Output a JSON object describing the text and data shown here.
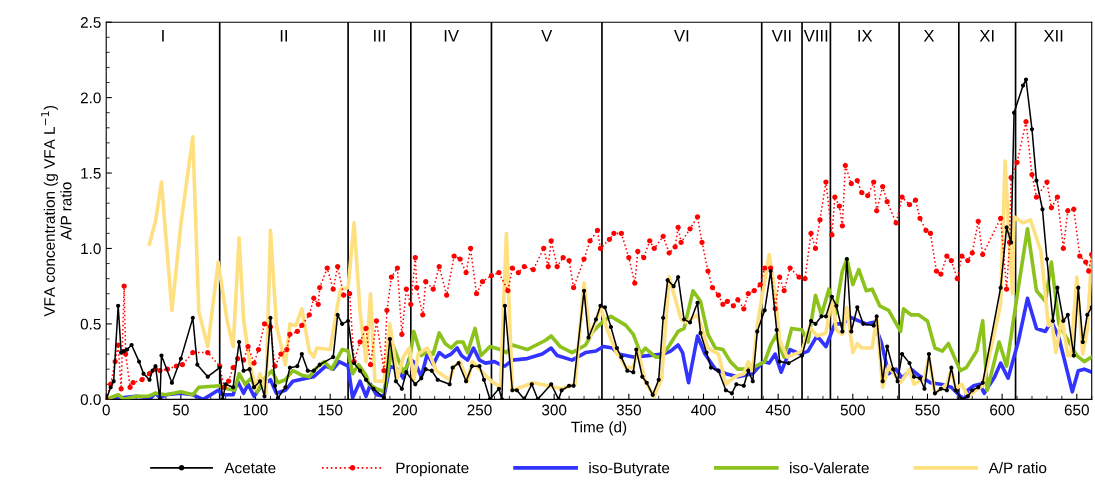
{
  "chart_data": {
    "type": "line",
    "xlabel": "Time (d)",
    "ylabel": "VFA concentration (g VFA L$^{−1}$)\nA/P ratio",
    "xlim": [
      0,
      660
    ],
    "xticks": [
      0,
      50,
      100,
      150,
      200,
      250,
      300,
      350,
      400,
      450,
      500,
      550,
      600,
      650
    ],
    "ylim": [
      0,
      2.5
    ],
    "yticks": [
      {
        "value": 0,
        "label": "0.0"
      },
      {
        "value": 0.5,
        "label": "0.5"
      },
      {
        "value": 1,
        "label": "1.0"
      },
      {
        "value": 1.5,
        "label": "1.5"
      },
      {
        "value": 2,
        "label": "2.0"
      },
      {
        "value": 2.5,
        "label": "2.5"
      }
    ],
    "grid": false,
    "legend": "bottom",
    "ref_lines": [
      {
        "axis": "x",
        "value": 76,
        "color": "#000000"
      },
      {
        "axis": "x",
        "value": 162,
        "color": "#000000"
      },
      {
        "axis": "x",
        "value": 204,
        "color": "#000000"
      },
      {
        "axis": "x",
        "value": 258,
        "color": "#000000"
      },
      {
        "axis": "x",
        "value": 332,
        "color": "#000000"
      },
      {
        "axis": "x",
        "value": 439,
        "color": "#000000"
      },
      {
        "axis": "x",
        "value": 466,
        "color": "#000000"
      },
      {
        "axis": "x",
        "value": 485,
        "color": "#000000"
      },
      {
        "axis": "x",
        "value": 531,
        "color": "#000000"
      },
      {
        "axis": "x",
        "value": 571,
        "color": "#000000"
      },
      {
        "axis": "x",
        "value": 609,
        "color": "#000000"
      }
    ],
    "annotations": [
      "I",
      "II",
      "III",
      "IV",
      "V",
      "VI",
      "VII",
      "VIII",
      "IX",
      "X",
      "XI",
      "XII"
    ],
    "series": [
      {
        "name": "Acetate",
        "color": "#000000",
        "marker": "circle",
        "line_style": "solid",
        "x": [
          0,
          3,
          5,
          8,
          10,
          12,
          14,
          17,
          22,
          25,
          29,
          31,
          33,
          36,
          37,
          44,
          50,
          58,
          61,
          68,
          76,
          78,
          80,
          85,
          89,
          92,
          96,
          99,
          103,
          106,
          110,
          113,
          115,
          120,
          123,
          128,
          131,
          135,
          139,
          143,
          152,
          155,
          158,
          162,
          166,
          170,
          174,
          179,
          186,
          190,
          194,
          198,
          201,
          207,
          211,
          214,
          218,
          222,
          230,
          232,
          236,
          241,
          245,
          250,
          253,
          257,
          263,
          265,
          267,
          272,
          275,
          280,
          285,
          289,
          298,
          303,
          305,
          310,
          313,
          320,
          323,
          328,
          331,
          334,
          338,
          342,
          345,
          349,
          353,
          355,
          359,
          362,
          366,
          370,
          373,
          376,
          380,
          383,
          387,
          391,
          396,
          398,
          402,
          405,
          410,
          415,
          419,
          422,
          427,
          430,
          433,
          436,
          441,
          445,
          449,
          451,
          457,
          466,
          472,
          475,
          479,
          482,
          486,
          489,
          493,
          496,
          499,
          503,
          507,
          514,
          516,
          520,
          523,
          527,
          530,
          533,
          538,
          541,
          545,
          548,
          551,
          555,
          559,
          563,
          566,
          569,
          573,
          577,
          580,
          584,
          587,
          599,
          603,
          606,
          608,
          614,
          616,
          620,
          623,
          627,
          630,
          634,
          637,
          641,
          644,
          648,
          651,
          654,
          657,
          660
        ],
        "values": [
          0,
          0.08,
          0.12,
          0.62,
          0.31,
          0.32,
          0.33,
          0.36,
          0.25,
          0.17,
          0.13,
          0.19,
          0.22,
          0,
          0.29,
          0.11,
          0.27,
          0.54,
          0.23,
          0.15,
          0.21,
          0,
          0.1,
          0.08,
          0.38,
          0.19,
          0.2,
          0.08,
          0.12,
          0.02,
          0.54,
          0.09,
          0.01,
          0.08,
          0.21,
          0.22,
          0.3,
          0.19,
          0.19,
          0.23,
          0.28,
          0.56,
          0.5,
          0.52,
          0.24,
          0.19,
          0.13,
          0.07,
          0.01,
          0.4,
          0.12,
          0.07,
          0.18,
          0.1,
          0.14,
          0.2,
          0.19,
          0.13,
          0.1,
          0.21,
          0.24,
          0.12,
          0.22,
          0.22,
          0.13,
          0,
          0.07,
          0,
          0.62,
          0.06,
          0.06,
          0,
          0.1,
          0,
          0.1,
          0,
          0.06,
          0.09,
          0.09,
          0.72,
          0.41,
          0.53,
          0.62,
          0.61,
          0.48,
          0.34,
          0.28,
          0.19,
          0.18,
          0.33,
          0.15,
          0.11,
          0.03,
          0.13,
          0.54,
          0.79,
          0.75,
          0.81,
          0.53,
          0.51,
          0.64,
          0.44,
          0.31,
          0.21,
          0.19,
          0.06,
          0.04,
          0.1,
          0.09,
          0.19,
          0.12,
          0.45,
          0.59,
          0.85,
          0.46,
          0.25,
          0.24,
          0.29,
          0.52,
          0.5,
          0.55,
          0.55,
          0.68,
          0.62,
          0.45,
          0.93,
          0.45,
          0.61,
          0.5,
          0.49,
          0.55,
          0.12,
          0.35,
          0.2,
          0.12,
          0.3,
          0.24,
          0.15,
          0.14,
          0.07,
          0.3,
          0.04,
          0.07,
          0.06,
          0.21,
          0.06,
          0,
          0.02,
          0.06,
          0.08,
          0.11,
          0.74,
          1.14,
          1.04,
          1.9,
          2.08,
          2.12,
          1.79,
          1.45,
          1.26,
          0.93,
          0.52,
          0.74,
          0.52,
          0.56,
          0.29,
          0.74,
          0.38,
          0.56,
          0.61
        ]
      },
      {
        "name": "Propionate",
        "color": "#ff0000",
        "marker": "circle",
        "line_style": "dotted",
        "x": [
          0,
          3,
          6,
          8,
          10,
          12,
          13,
          16,
          18,
          24,
          29,
          33,
          36,
          41,
          47,
          51,
          58,
          68,
          76,
          79,
          82,
          85,
          88,
          92,
          95,
          99,
          102,
          106,
          110,
          113,
          117,
          121,
          123,
          128,
          131,
          136,
          139,
          142,
          143,
          148,
          152,
          155,
          159,
          163,
          166,
          170,
          174,
          177,
          181,
          186,
          188,
          191,
          195,
          198,
          201,
          204,
          207,
          208,
          212,
          214,
          219,
          223,
          228,
          233,
          237,
          241,
          244,
          248,
          252,
          258,
          263,
          269,
          272,
          276,
          280,
          286,
          293,
          296,
          298,
          302,
          306,
          310,
          313,
          320,
          324,
          329,
          331,
          337,
          340,
          345,
          350,
          354,
          356,
          360,
          364,
          367,
          373,
          377,
          381,
          383,
          385,
          391,
          396,
          399,
          403,
          406,
          410,
          413,
          416,
          420,
          423,
          427,
          430,
          434,
          438,
          441,
          445,
          448,
          451,
          454,
          458,
          464,
          468,
          472,
          475,
          478,
          482,
          486,
          488,
          491,
          493,
          495,
          499,
          503,
          506,
          510,
          514,
          516,
          520,
          523,
          529,
          533,
          538,
          542,
          545,
          549,
          552,
          556,
          559,
          563,
          566,
          570,
          573,
          577,
          580,
          584,
          587,
          599,
          603,
          605,
          606,
          610,
          616,
          620,
          623,
          630,
          633,
          637,
          641,
          644,
          648,
          652,
          656,
          658,
          660
        ],
        "values": [
          0,
          0.1,
          0.25,
          0.36,
          0.07,
          0.75,
          0.3,
          0.08,
          0.11,
          0.13,
          0.17,
          0.2,
          0.19,
          0.2,
          0.22,
          0.23,
          0.31,
          0.31,
          0.22,
          0.08,
          0.12,
          0.21,
          0.27,
          0.26,
          0.35,
          0.24,
          0.33,
          0.5,
          0.48,
          0.22,
          0.3,
          0.33,
          0.43,
          0.45,
          0.49,
          0.56,
          0.67,
          0.63,
          0.74,
          0.87,
          0.73,
          0.88,
          0.69,
          0.7,
          0.25,
          0.38,
          0.47,
          0.23,
          0.52,
          0.19,
          0.59,
          0.81,
          0.87,
          0.43,
          0.73,
          0.63,
          0.94,
          0.74,
          0.56,
          0.78,
          0.73,
          0.88,
          0.69,
          0.95,
          0.93,
          0.84,
          1.0,
          0.7,
          0.78,
          0.82,
          0.84,
          0.72,
          0.87,
          0.84,
          0.88,
          0.86,
          1.0,
          0.88,
          1.05,
          0.88,
          0.94,
          0.92,
          0.74,
          0.93,
          1.05,
          1.12,
          1.0,
          1.06,
          1.1,
          1.1,
          0.94,
          0.77,
          0.98,
          0.94,
          1.05,
          1.0,
          1.08,
          0.97,
          1.01,
          1.14,
          1.04,
          1.13,
          1.21,
          1.04,
          0.85,
          0.74,
          0.69,
          0.63,
          0.65,
          0.62,
          0.66,
          0.6,
          0.7,
          0.72,
          0.76,
          0.87,
          0.87,
          0.6,
          0.81,
          0.72,
          0.87,
          0.81,
          0.8,
          1.1,
          1.0,
          1.19,
          1.44,
          1.09,
          1.34,
          1.28,
          1.15,
          1.55,
          1.43,
          1.45,
          1.37,
          1.35,
          1.44,
          1.25,
          1.41,
          1.31,
          1.17,
          1.34,
          1.29,
          1.32,
          1.2,
          1.12,
          1.1,
          0.85,
          0.83,
          0.95,
          0.92,
          0.8,
          0.95,
          0.92,
          0.97,
          1.18,
          0.96,
          1.2,
          0.73,
          1.04,
          1.47,
          1.57,
          1.84,
          1.49,
          1.34,
          1.44,
          1.27,
          1.34,
          1.0,
          1.25,
          1.26,
          0.95,
          0.91,
          0.85,
          0.96
        ]
      },
      {
        "name": "iso-Butyrate",
        "color": "#3333ff",
        "marker": "none",
        "line_style": "solid",
        "x": [
          0,
          20,
          30,
          33,
          36,
          40,
          50,
          58,
          65,
          75,
          78,
          85,
          88,
          92,
          95,
          99,
          104,
          110,
          114,
          120,
          125,
          134,
          139,
          147,
          152,
          156,
          162,
          165,
          170,
          174,
          177,
          181,
          186,
          190,
          195,
          199,
          203,
          207,
          211,
          215,
          219,
          223,
          227,
          231,
          235,
          238,
          242,
          246,
          250,
          254,
          260,
          264,
          267,
          272,
          282,
          292,
          298,
          302,
          312,
          321,
          328,
          333,
          339,
          343,
          353,
          363,
          373,
          378,
          383,
          386,
          390,
          396,
          401,
          408,
          415,
          423,
          433,
          440,
          444,
          448,
          452,
          458,
          465,
          470,
          476,
          482,
          488,
          494,
          497,
          504,
          509,
          514,
          519,
          524,
          529,
          533,
          539,
          544,
          552,
          559,
          566,
          572,
          575,
          577,
          581,
          585,
          588,
          595,
          599,
          604,
          611,
          617,
          623,
          629,
          633,
          638,
          644,
          647,
          651,
          655,
          660
        ],
        "values": [
          0,
          0.02,
          0.01,
          0.04,
          0.01,
          0.03,
          0.04,
          0.03,
          0,
          0.06,
          0.03,
          0.03,
          0.12,
          0.04,
          0.1,
          0.02,
          0.09,
          0.13,
          0.04,
          0.06,
          0.12,
          0.14,
          0.15,
          0.22,
          0.2,
          0.25,
          0.22,
          0.01,
          0.12,
          0.02,
          0.1,
          0.03,
          0.02,
          0.22,
          0.2,
          0.14,
          0.27,
          0.24,
          0.15,
          0.3,
          0.23,
          0.31,
          0.28,
          0.3,
          0.34,
          0.29,
          0.26,
          0.34,
          0.26,
          0.24,
          0.25,
          0.23,
          0.22,
          0.26,
          0.27,
          0.3,
          0.34,
          0.29,
          0.26,
          0.31,
          0.32,
          0.35,
          0.34,
          0.3,
          0.28,
          0.29,
          0.3,
          0.32,
          0.36,
          0.31,
          0.11,
          0.42,
          0.3,
          0.2,
          0.17,
          0.15,
          0.17,
          0.25,
          0.24,
          0.3,
          0.18,
          0.33,
          0.3,
          0.32,
          0.42,
          0.35,
          0.5,
          0.5,
          0.55,
          0.52,
          0.5,
          0.51,
          0.38,
          0.17,
          0.2,
          0.14,
          0.2,
          0.16,
          0.11,
          0.1,
          0.08,
          0.02,
          0,
          0.06,
          0.09,
          0.1,
          0.04,
          0.15,
          0.24,
          0.14,
          0.39,
          0.67,
          0.47,
          0.45,
          0.52,
          0.41,
          0.17,
          0.05,
          0.19,
          0.2,
          0.18
        ]
      },
      {
        "name": "iso-Valerate",
        "color": "#8cc21c",
        "marker": "none",
        "line_style": "solid",
        "x": [
          0,
          8,
          12,
          20,
          28,
          33,
          40,
          50,
          58,
          62,
          76,
          81,
          86,
          89,
          93,
          97,
          101,
          107,
          111,
          115,
          120,
          125,
          131,
          136,
          141,
          146,
          151,
          158,
          162,
          165,
          169,
          174,
          176,
          181,
          186,
          192,
          195,
          199,
          203,
          206,
          211,
          215,
          219,
          223,
          227,
          231,
          235,
          239,
          242,
          247,
          251,
          257,
          264,
          268,
          272,
          282,
          294,
          298,
          304,
          312,
          321,
          326,
          333,
          338,
          343,
          348,
          353,
          358,
          361,
          368,
          371,
          376,
          383,
          387,
          393,
          398,
          403,
          408,
          413,
          418,
          423,
          428,
          435,
          441,
          445,
          449,
          451,
          454,
          459,
          466,
          470,
          475,
          479,
          484,
          488,
          493,
          496,
          500,
          504,
          509,
          513,
          518,
          524,
          532,
          534,
          539,
          544,
          550,
          555,
          560,
          564,
          572,
          576,
          583,
          587,
          590,
          598,
          603,
          611,
          617,
          623,
          629,
          633,
          638,
          643,
          650,
          655,
          660
        ],
        "values": [
          0,
          0.03,
          0,
          0.02,
          0.02,
          0.04,
          0.03,
          0.05,
          0.03,
          0.08,
          0.09,
          0.07,
          0.06,
          0.17,
          0.1,
          0.14,
          0.05,
          0.15,
          0.19,
          0.11,
          0.13,
          0.19,
          0.16,
          0.15,
          0.21,
          0.25,
          0.2,
          0.33,
          0.32,
          0.17,
          0.23,
          0.16,
          0.1,
          0.07,
          0.05,
          0.36,
          0.28,
          0.18,
          0.25,
          0.45,
          0.29,
          0.32,
          0.3,
          0.44,
          0.37,
          0.34,
          0.38,
          0.38,
          0.31,
          0.47,
          0.29,
          0.35,
          0.33,
          0.31,
          0.36,
          0.33,
          0.39,
          0.42,
          0.35,
          0.31,
          0.36,
          0.45,
          0.52,
          0.55,
          0.52,
          0.49,
          0.43,
          0.3,
          0.34,
          0.28,
          0.28,
          0.34,
          0.45,
          0.47,
          0.72,
          0.65,
          0.43,
          0.34,
          0.33,
          0.25,
          0.2,
          0.2,
          0.22,
          0.25,
          0.36,
          0.43,
          0.35,
          0.28,
          0.47,
          0.46,
          0.38,
          0.69,
          0.56,
          0.73,
          0.56,
          0.85,
          0.93,
          0.76,
          0.86,
          0.72,
          0.73,
          0.62,
          0.59,
          0.45,
          0.6,
          0.56,
          0.56,
          0.52,
          0.34,
          0.32,
          0.37,
          0.19,
          0.21,
          0.32,
          0.52,
          0.06,
          0.38,
          0.22,
          0.75,
          1.13,
          0.72,
          0.65,
          0.91,
          0.5,
          0.41,
          0.29,
          0.25,
          0.28
        ]
      },
      {
        "name": "A/P ratio",
        "color": "#ffe080",
        "marker": "none",
        "line_style": "solid",
        "x": [
          29,
          33,
          37,
          44,
          50,
          58,
          62,
          68,
          75,
          81,
          85,
          89,
          92,
          96,
          100,
          103,
          107,
          110,
          114,
          120,
          123,
          127,
          131,
          136,
          139,
          141,
          150,
          155,
          157,
          162,
          166,
          170,
          174,
          177,
          180,
          186,
          190,
          195,
          199,
          203,
          206,
          209,
          215,
          221,
          230,
          233,
          237,
          242,
          245,
          251,
          258,
          264,
          268,
          272,
          286,
          296,
          305,
          314,
          320,
          324,
          331,
          336,
          342,
          343,
          348,
          353,
          356,
          361,
          367,
          372,
          377,
          385,
          388,
          396,
          403,
          410,
          415,
          421,
          427,
          430,
          433,
          436,
          444,
          448,
          451,
          456,
          466,
          471,
          476,
          482,
          486,
          489,
          493,
          496,
          500,
          503,
          506,
          513,
          516,
          520,
          524,
          529,
          532,
          538,
          541,
          548,
          551,
          555,
          563,
          566,
          569,
          573,
          577,
          584,
          587,
          599,
          602,
          605,
          607,
          608,
          614,
          619,
          626,
          631,
          633,
          636,
          640,
          644,
          646,
          650,
          654,
          657,
          660
        ],
        "values": [
          1.03,
          1.18,
          1.44,
          0.59,
          1.16,
          1.74,
          0.58,
          0.35,
          0.91,
          0.52,
          0.35,
          1.07,
          0.53,
          0.25,
          0.07,
          0.17,
          0.04,
          1.12,
          0.49,
          0.23,
          0.5,
          0.49,
          0.6,
          0.32,
          0.28,
          0.34,
          0.33,
          0.63,
          0.73,
          0.74,
          1.17,
          0.58,
          0.25,
          0.7,
          0.12,
          0.12,
          0.5,
          0.14,
          0.28,
          0.34,
          0.13,
          0.3,
          0.34,
          0.19,
          0.13,
          0.22,
          0.25,
          0.12,
          0.25,
          0.19,
          0.12,
          0.08,
          1.1,
          0.06,
          0.11,
          0.09,
          0.07,
          0.1,
          0.77,
          0.41,
          0.61,
          0.45,
          0.3,
          0.3,
          0.21,
          0.21,
          0.33,
          0.12,
          0.02,
          0.14,
          0.81,
          0.53,
          0.51,
          0.56,
          0.34,
          0.3,
          0.1,
          0.15,
          0.17,
          0.25,
          0.19,
          0.49,
          0.96,
          0.7,
          0.39,
          0.28,
          0.32,
          0.48,
          0.42,
          0.44,
          0.68,
          0.46,
          0.43,
          0.61,
          0.31,
          0.37,
          0.34,
          0.34,
          0.54,
          0.08,
          0.22,
          0.15,
          0.11,
          0.2,
          0.1,
          0.14,
          0.28,
          0.04,
          0.1,
          0.2,
          0.07,
          0.1,
          0.02,
          0.07,
          0.09,
          0.63,
          1.58,
          0.99,
          0.7,
          1.21,
          1.17,
          1.19,
          0.98,
          0.49,
          0.53,
          0.31,
          0.54,
          0.29,
          0.29,
          0.81,
          0.3,
          0.46,
          0.95
        ]
      }
    ]
  }
}
